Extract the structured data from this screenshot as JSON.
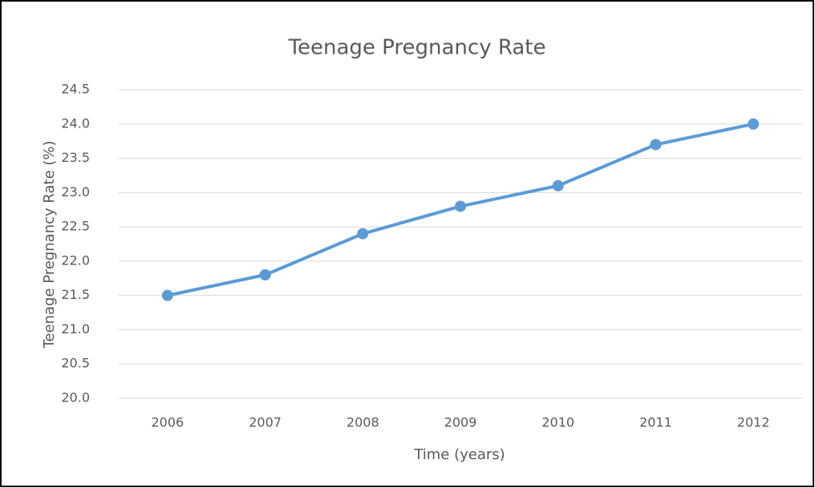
{
  "chart_data": {
    "type": "line",
    "title": "Teenage Pregnancy Rate",
    "x_label": "Time (years)",
    "y_label": "Teenage Pregnancy Rate (%)",
    "categories": [
      "2006",
      "2007",
      "2008",
      "2009",
      "2010",
      "2011",
      "2012"
    ],
    "series": [
      {
        "name": "Teenage Pregnancy Rate",
        "color": "#5b9bd5",
        "values": [
          21.5,
          21.8,
          22.4,
          22.8,
          23.1,
          23.7,
          24.0
        ]
      }
    ],
    "ylim": [
      20,
      24.5
    ],
    "yticks": [
      {
        "value": 20,
        "label": "20.0"
      },
      20.5,
      {
        "value": 21,
        "label": "21.0"
      },
      21.5,
      {
        "value": 22,
        "label": "22.0"
      },
      22.5,
      {
        "value": 23,
        "label": "23.0"
      },
      23.5,
      {
        "value": 24,
        "label": "24.0"
      },
      24.5
    ],
    "grid": true
  }
}
